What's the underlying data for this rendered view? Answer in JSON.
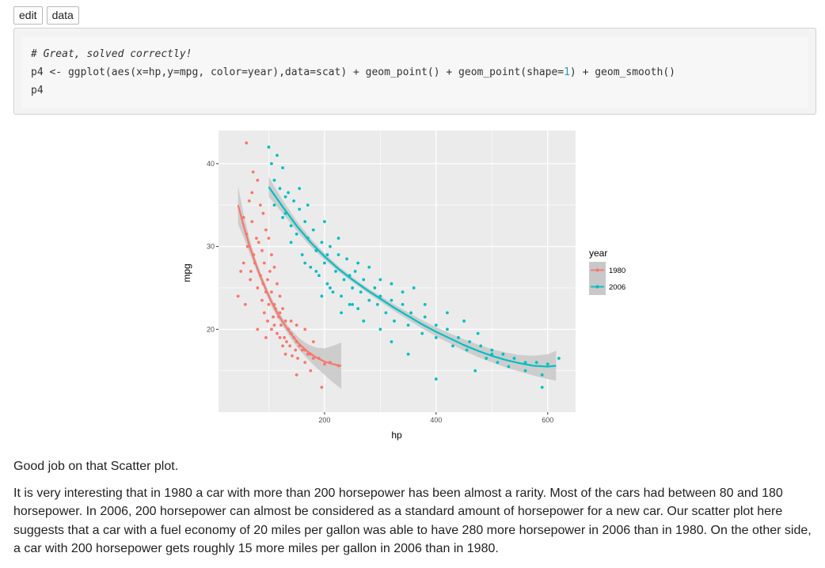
{
  "toolbar": {
    "edit_label": "edit",
    "data_label": "data"
  },
  "code": {
    "line1": "# Great, solved correctly!",
    "line2_a": "p4 <- ggplot(aes(x=hp,y=mpg, color=year),data=scat) + geom_point() + geom_point(shape=",
    "line2_num": "1",
    "line2_b": ") + geom_smooth()",
    "line3": "p4"
  },
  "chart_data": {
    "type": "scatter",
    "title": "",
    "xlabel": "hp",
    "ylabel": "mpg",
    "xlim": [
      10,
      650
    ],
    "ylim": [
      10,
      44
    ],
    "xticks": [
      200,
      400,
      600
    ],
    "yticks": [
      20,
      30,
      40
    ],
    "grid": true,
    "legend": {
      "title": "year",
      "position": "right"
    },
    "colors": {
      "1980": "#f8766d",
      "2006": "#00bfc4",
      "panel": "#ebebeb",
      "grid": "#ffffff",
      "ribbon": "#c8c8c8"
    },
    "series": [
      {
        "name": "1980",
        "points": [
          [
            60,
            42.5
          ],
          [
            72,
            39
          ],
          [
            80,
            38
          ],
          [
            85,
            35
          ],
          [
            65,
            35.5
          ],
          [
            90,
            34
          ],
          [
            55,
            33.5
          ],
          [
            70,
            33
          ],
          [
            95,
            32
          ],
          [
            78,
            31
          ],
          [
            100,
            31
          ],
          [
            62,
            30
          ],
          [
            88,
            29.5
          ],
          [
            105,
            29
          ],
          [
            75,
            28
          ],
          [
            92,
            28
          ],
          [
            110,
            27.5
          ],
          [
            68,
            27
          ],
          [
            85,
            26.5
          ],
          [
            98,
            26
          ],
          [
            115,
            25.5
          ],
          [
            80,
            25
          ],
          [
            95,
            24.5
          ],
          [
            105,
            24.5
          ],
          [
            120,
            24
          ],
          [
            88,
            23.5
          ],
          [
            100,
            23
          ],
          [
            112,
            22.5
          ],
          [
            125,
            22.5
          ],
          [
            92,
            22
          ],
          [
            108,
            21.5
          ],
          [
            118,
            21.5
          ],
          [
            130,
            21
          ],
          [
            98,
            21
          ],
          [
            110,
            20.5
          ],
          [
            122,
            20.5
          ],
          [
            135,
            20
          ],
          [
            140,
            19.5
          ],
          [
            105,
            20
          ],
          [
            115,
            19.5
          ],
          [
            128,
            19
          ],
          [
            145,
            19
          ],
          [
            150,
            18.5
          ],
          [
            120,
            19
          ],
          [
            132,
            18.5
          ],
          [
            138,
            18
          ],
          [
            155,
            18
          ],
          [
            160,
            17.5
          ],
          [
            125,
            18
          ],
          [
            148,
            17.5
          ],
          [
            165,
            17.5
          ],
          [
            170,
            17
          ],
          [
            142,
            16.8
          ],
          [
            175,
            17
          ],
          [
            180,
            16.5
          ],
          [
            152,
            16.5
          ],
          [
            190,
            16.5
          ],
          [
            165,
            16
          ],
          [
            200,
            15.8
          ],
          [
            210,
            16
          ],
          [
            225,
            15.6
          ],
          [
            175,
            15
          ],
          [
            150,
            14.5
          ],
          [
            195,
            13
          ],
          [
            60,
            31.5
          ],
          [
            82,
            30.5
          ],
          [
            73,
            29
          ],
          [
            50,
            27
          ],
          [
            45,
            24
          ],
          [
            58,
            23
          ],
          [
            67,
            26
          ],
          [
            90,
            25.5
          ],
          [
            110,
            23
          ],
          [
            140,
            21
          ],
          [
            150,
            20.5
          ],
          [
            165,
            20
          ],
          [
            180,
            18.5
          ],
          [
            130,
            17
          ],
          [
            80,
            20
          ],
          [
            95,
            19
          ],
          [
            120,
            22
          ],
          [
            70,
            36.5
          ],
          [
            102,
            27
          ],
          [
            55,
            28
          ]
        ]
      },
      {
        "name": "2006",
        "points": [
          [
            100,
            42
          ],
          [
            115,
            41
          ],
          [
            105,
            40
          ],
          [
            125,
            39.5
          ],
          [
            110,
            38
          ],
          [
            120,
            37
          ],
          [
            135,
            36.5
          ],
          [
            145,
            35.5
          ],
          [
            110,
            35
          ],
          [
            155,
            34.5
          ],
          [
            130,
            34
          ],
          [
            165,
            33
          ],
          [
            140,
            32.5
          ],
          [
            180,
            32
          ],
          [
            150,
            31.5
          ],
          [
            170,
            31
          ],
          [
            195,
            30.5
          ],
          [
            210,
            30
          ],
          [
            185,
            29.5
          ],
          [
            160,
            29
          ],
          [
            225,
            29
          ],
          [
            240,
            28.5
          ],
          [
            200,
            28
          ],
          [
            175,
            27.5
          ],
          [
            220,
            27
          ],
          [
            255,
            27
          ],
          [
            190,
            26.5
          ],
          [
            235,
            26
          ],
          [
            270,
            26
          ],
          [
            205,
            25.5
          ],
          [
            250,
            25
          ],
          [
            290,
            25
          ],
          [
            215,
            24.5
          ],
          [
            265,
            24.5
          ],
          [
            300,
            24
          ],
          [
            230,
            24
          ],
          [
            280,
            23.5
          ],
          [
            320,
            23.5
          ],
          [
            245,
            23
          ],
          [
            295,
            23
          ],
          [
            340,
            23
          ],
          [
            260,
            22.5
          ],
          [
            310,
            22
          ],
          [
            355,
            22
          ],
          [
            380,
            21.5
          ],
          [
            325,
            21
          ],
          [
            270,
            21
          ],
          [
            400,
            20.5
          ],
          [
            350,
            20.5
          ],
          [
            300,
            20
          ],
          [
            420,
            20
          ],
          [
            375,
            19.5
          ],
          [
            440,
            19
          ],
          [
            400,
            19
          ],
          [
            320,
            18.5
          ],
          [
            460,
            18.5
          ],
          [
            430,
            18
          ],
          [
            480,
            18
          ],
          [
            500,
            17.5
          ],
          [
            455,
            17.5
          ],
          [
            350,
            17
          ],
          [
            520,
            17
          ],
          [
            490,
            16.5
          ],
          [
            540,
            16.5
          ],
          [
            560,
            16
          ],
          [
            510,
            16
          ],
          [
            580,
            16
          ],
          [
            600,
            15.8
          ],
          [
            620,
            16.5
          ],
          [
            530,
            15.5
          ],
          [
            470,
            15
          ],
          [
            560,
            15
          ],
          [
            590,
            14.5
          ],
          [
            400,
            14
          ],
          [
            590,
            13
          ],
          [
            125,
            33.5
          ],
          [
            140,
            30.5
          ],
          [
            165,
            28
          ],
          [
            185,
            27
          ],
          [
            205,
            29
          ],
          [
            225,
            31
          ],
          [
            200,
            33
          ],
          [
            245,
            26.5
          ],
          [
            260,
            28
          ],
          [
            280,
            27.5
          ],
          [
            300,
            26
          ],
          [
            320,
            25.5
          ],
          [
            340,
            24.5
          ],
          [
            360,
            25
          ],
          [
            380,
            23
          ],
          [
            420,
            22
          ],
          [
            450,
            21
          ],
          [
            475,
            19.5
          ],
          [
            500,
            17
          ],
          [
            250,
            23
          ],
          [
            230,
            22
          ],
          [
            210,
            25
          ],
          [
            195,
            24
          ],
          [
            130,
            36
          ],
          [
            155,
            37
          ],
          [
            170,
            35
          ]
        ]
      }
    ],
    "smooth": [
      {
        "name": "1980",
        "x": [
          45,
          55,
          65,
          75,
          85,
          95,
          105,
          115,
          125,
          135,
          145,
          155,
          170,
          185,
          200,
          215,
          230
        ],
        "y": [
          35,
          32.5,
          30.2,
          28.2,
          26.4,
          24.8,
          23.3,
          22,
          20.9,
          19.9,
          19,
          18.2,
          17.3,
          16.6,
          16.1,
          15.8,
          15.6
        ],
        "se": [
          2.3,
          1.4,
          0.9,
          0.6,
          0.5,
          0.5,
          0.5,
          0.5,
          0.5,
          0.5,
          0.6,
          0.7,
          0.9,
          1.2,
          1.6,
          2.2,
          2.8
        ]
      },
      {
        "name": "2006",
        "x": [
          100,
          125,
          150,
          175,
          200,
          225,
          250,
          275,
          300,
          325,
          350,
          375,
          400,
          425,
          450,
          475,
          500,
          525,
          550,
          575,
          600,
          615
        ],
        "y": [
          37.2,
          34.8,
          32.5,
          30.5,
          28.8,
          27.3,
          26,
          24.8,
          23.7,
          22.6,
          21.6,
          20.6,
          19.7,
          18.9,
          18.1,
          17.4,
          16.8,
          16.3,
          15.9,
          15.6,
          15.5,
          15.6
        ],
        "se": [
          1.2,
          0.8,
          0.6,
          0.5,
          0.4,
          0.35,
          0.3,
          0.3,
          0.35,
          0.4,
          0.45,
          0.5,
          0.55,
          0.6,
          0.7,
          0.75,
          0.8,
          0.9,
          1.0,
          1.2,
          1.5,
          1.8
        ]
      }
    ]
  },
  "message": {
    "p1": "Good job on that Scatter plot.",
    "p2": "It is very interesting that in 1980 a car with more than 200 horsepower has been almost a rarity. Most of the cars had between 80 and 180 horsepower. In 2006, 200 horsepower can almost be considered as a standard amount of horsepower for a new car. Our scatter plot here suggests that a car with a fuel economy of 20 miles per gallon was able to have 280 more horsepower in 2006 than in 1980. On the other side, a car with 200 horsepower gets roughly 15 more miles per gallon in 2006 than in 1980."
  }
}
